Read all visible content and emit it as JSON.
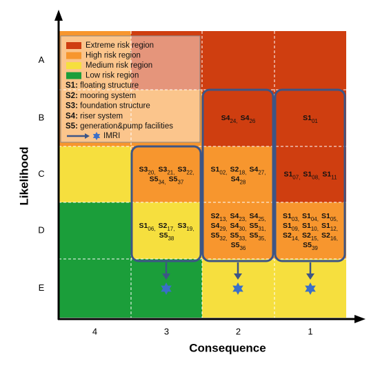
{
  "axes": {
    "y_label": "Likelihood",
    "x_label": "Consequence",
    "rows": [
      "A",
      "B",
      "C",
      "D",
      "E"
    ],
    "columns": [
      "4",
      "3",
      "2",
      "1"
    ]
  },
  "legend": {
    "regions": [
      {
        "label": "Extreme risk region",
        "color": "#cf3e10"
      },
      {
        "label": "High risk region",
        "color": "#f7962e"
      },
      {
        "label": "Medium risk region",
        "color": "#f6df3e"
      },
      {
        "label": "Low risk region",
        "color": "#1b9e3a"
      }
    ],
    "systems": [
      {
        "code": "S1:",
        "name": " floating structure"
      },
      {
        "code": "S2:",
        "name": " mooring system"
      },
      {
        "code": "S3:",
        "name": " foundation structure"
      },
      {
        "code": "S4:",
        "name": " riser system"
      },
      {
        "code": "S5:",
        "name": " generation&pump facilities"
      }
    ],
    "imri": "IMRI"
  },
  "matrix": [
    [
      {
        "region": 1,
        "lines": []
      },
      {
        "region": 0,
        "lines": []
      },
      {
        "region": 0,
        "lines": []
      },
      {
        "region": 0,
        "lines": []
      }
    ],
    [
      {
        "region": 1,
        "lines": []
      },
      {
        "region": 1,
        "lines": []
      },
      {
        "region": 0,
        "lines": [
          [
            [
              "S4",
              "24,"
            ],
            [
              "S4",
              "26"
            ]
          ]
        ]
      },
      {
        "region": 0,
        "lines": [
          [
            [
              "S1",
              "01"
            ]
          ]
        ]
      }
    ],
    [
      {
        "region": 2,
        "lines": []
      },
      {
        "region": 1,
        "lines": [
          [
            [
              "S3",
              "20,"
            ],
            [
              "S3",
              "21,"
            ],
            [
              "S3",
              "22,"
            ]
          ],
          [
            [
              "S5",
              "34,"
            ],
            [
              "S5",
              "37"
            ]
          ]
        ]
      },
      {
        "region": 1,
        "lines": [
          [
            [
              "S1",
              "02,"
            ],
            [
              "S2",
              "18,"
            ],
            [
              "S4",
              "27,"
            ]
          ],
          [
            [
              "S4",
              "28"
            ]
          ]
        ]
      },
      {
        "region": 0,
        "lines": [
          [
            [
              "S1",
              "07,"
            ],
            [
              "S1",
              "08,"
            ],
            [
              "S1",
              "11"
            ]
          ]
        ]
      }
    ],
    [
      {
        "region": 3,
        "lines": []
      },
      {
        "region": 2,
        "lines": [
          [
            [
              "S1",
              "06,"
            ],
            [
              "S2",
              "17,"
            ],
            [
              "S3",
              "19,"
            ]
          ],
          [
            [
              "S5",
              "38"
            ]
          ]
        ]
      },
      {
        "region": 1,
        "lines": [
          [
            [
              "S2",
              "13,"
            ],
            [
              "S4",
              "23,"
            ],
            [
              "S4",
              "25,"
            ]
          ],
          [
            [
              "S4",
              "29,"
            ],
            [
              "S4",
              "30,"
            ],
            [
              "S5",
              "31,"
            ]
          ],
          [
            [
              "S5",
              "32,"
            ],
            [
              "S5",
              "33,"
            ],
            [
              "S5",
              "35,"
            ]
          ],
          [
            [
              "S5",
              "36"
            ]
          ]
        ]
      },
      {
        "region": 1,
        "lines": [
          [
            [
              "S1",
              "03,"
            ],
            [
              "S1",
              "04,"
            ],
            [
              "S1",
              "05,"
            ]
          ],
          [
            [
              "S1",
              "09,"
            ],
            [
              "S1",
              "10,"
            ],
            [
              "S1",
              "12,"
            ]
          ],
          [
            [
              "S2",
              "14,"
            ],
            [
              "S2",
              "15,"
            ],
            [
              "S2",
              "16,"
            ]
          ],
          [
            [
              "S5",
              "39"
            ]
          ]
        ]
      }
    ],
    [
      {
        "region": 3,
        "lines": []
      },
      {
        "region": 3,
        "lines": []
      },
      {
        "region": 2,
        "lines": []
      },
      {
        "region": 2,
        "lines": []
      }
    ]
  ]
}
